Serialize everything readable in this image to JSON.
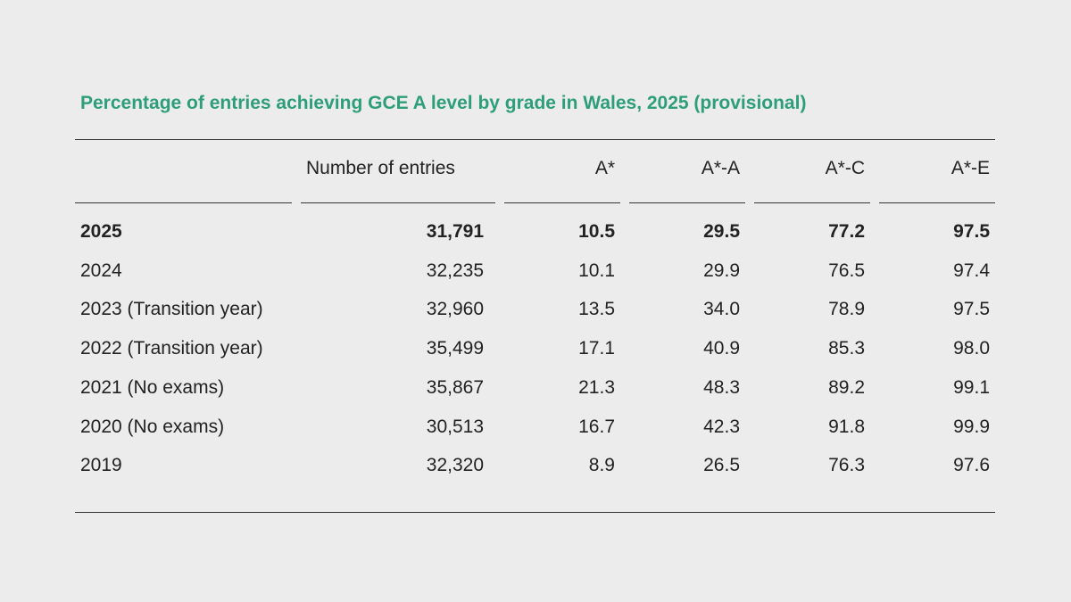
{
  "chart_data": {
    "type": "table",
    "title": "Percentage of entries achieving GCE A level by grade in Wales, 2025 (provisional)",
    "columns": [
      "",
      "Number of entries",
      "A*",
      "A*-A",
      "A*-C",
      "A*-E"
    ],
    "rows": [
      {
        "label": "2025",
        "entries": "31,791",
        "astar": "10.5",
        "a": "29.5",
        "c": "77.2",
        "e": "97.5",
        "bold": true
      },
      {
        "label": "2024",
        "entries": "32,235",
        "astar": "10.1",
        "a": "29.9",
        "c": "76.5",
        "e": "97.4"
      },
      {
        "label": "2023 (Transition year)",
        "entries": "32,960",
        "astar": "13.5",
        "a": "34.0",
        "c": "78.9",
        "e": "97.5"
      },
      {
        "label": "2022 (Transition year)",
        "entries": "35,499",
        "astar": "17.1",
        "a": "40.9",
        "c": "85.3",
        "e": "98.0"
      },
      {
        "label": "2021 (No exams)",
        "entries": "35,867",
        "astar": "21.3",
        "a": "48.3",
        "c": "89.2",
        "e": "99.1"
      },
      {
        "label": "2020 (No exams)",
        "entries": "30,513",
        "astar": "16.7",
        "a": "42.3",
        "c": "91.8",
        "e": "99.9"
      },
      {
        "label": "2019",
        "entries": "32,320",
        "astar": "8.9",
        "a": "26.5",
        "c": "76.3",
        "e": "97.6"
      }
    ]
  },
  "colors": {
    "title": "#2e9e7a",
    "background": "#ececec",
    "text": "#222222",
    "rule": "#333333"
  }
}
